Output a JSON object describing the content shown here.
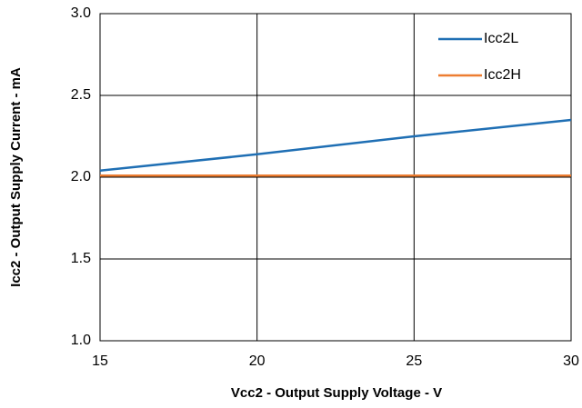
{
  "chart_data": {
    "type": "line",
    "xlabel": "Vcc2 - Output Supply Voltage - V",
    "ylabel": "Icc2 - Output Supply Current - mA",
    "x": [
      15,
      20,
      25,
      30
    ],
    "series": [
      {
        "name": "Icc2L",
        "color": "#1f6fb4",
        "values": [
          2.04,
          2.14,
          2.25,
          2.35
        ]
      },
      {
        "name": "Icc2H",
        "color": "#ed7d31",
        "values": [
          2.01,
          2.01,
          2.01,
          2.01
        ]
      }
    ],
    "xlim": [
      15,
      30
    ],
    "xticks": [
      15,
      20,
      25,
      30
    ],
    "ylim": [
      1,
      3
    ],
    "yticks": [
      {
        "value": 1,
        "label": "1.0"
      },
      {
        "value": 1.5,
        "label": "1.5"
      },
      {
        "value": 2,
        "label": "2.0"
      },
      {
        "value": 2.5,
        "label": "2.5"
      },
      {
        "value": 3,
        "label": "3.0"
      }
    ],
    "grid": true,
    "legend": "upper right"
  }
}
